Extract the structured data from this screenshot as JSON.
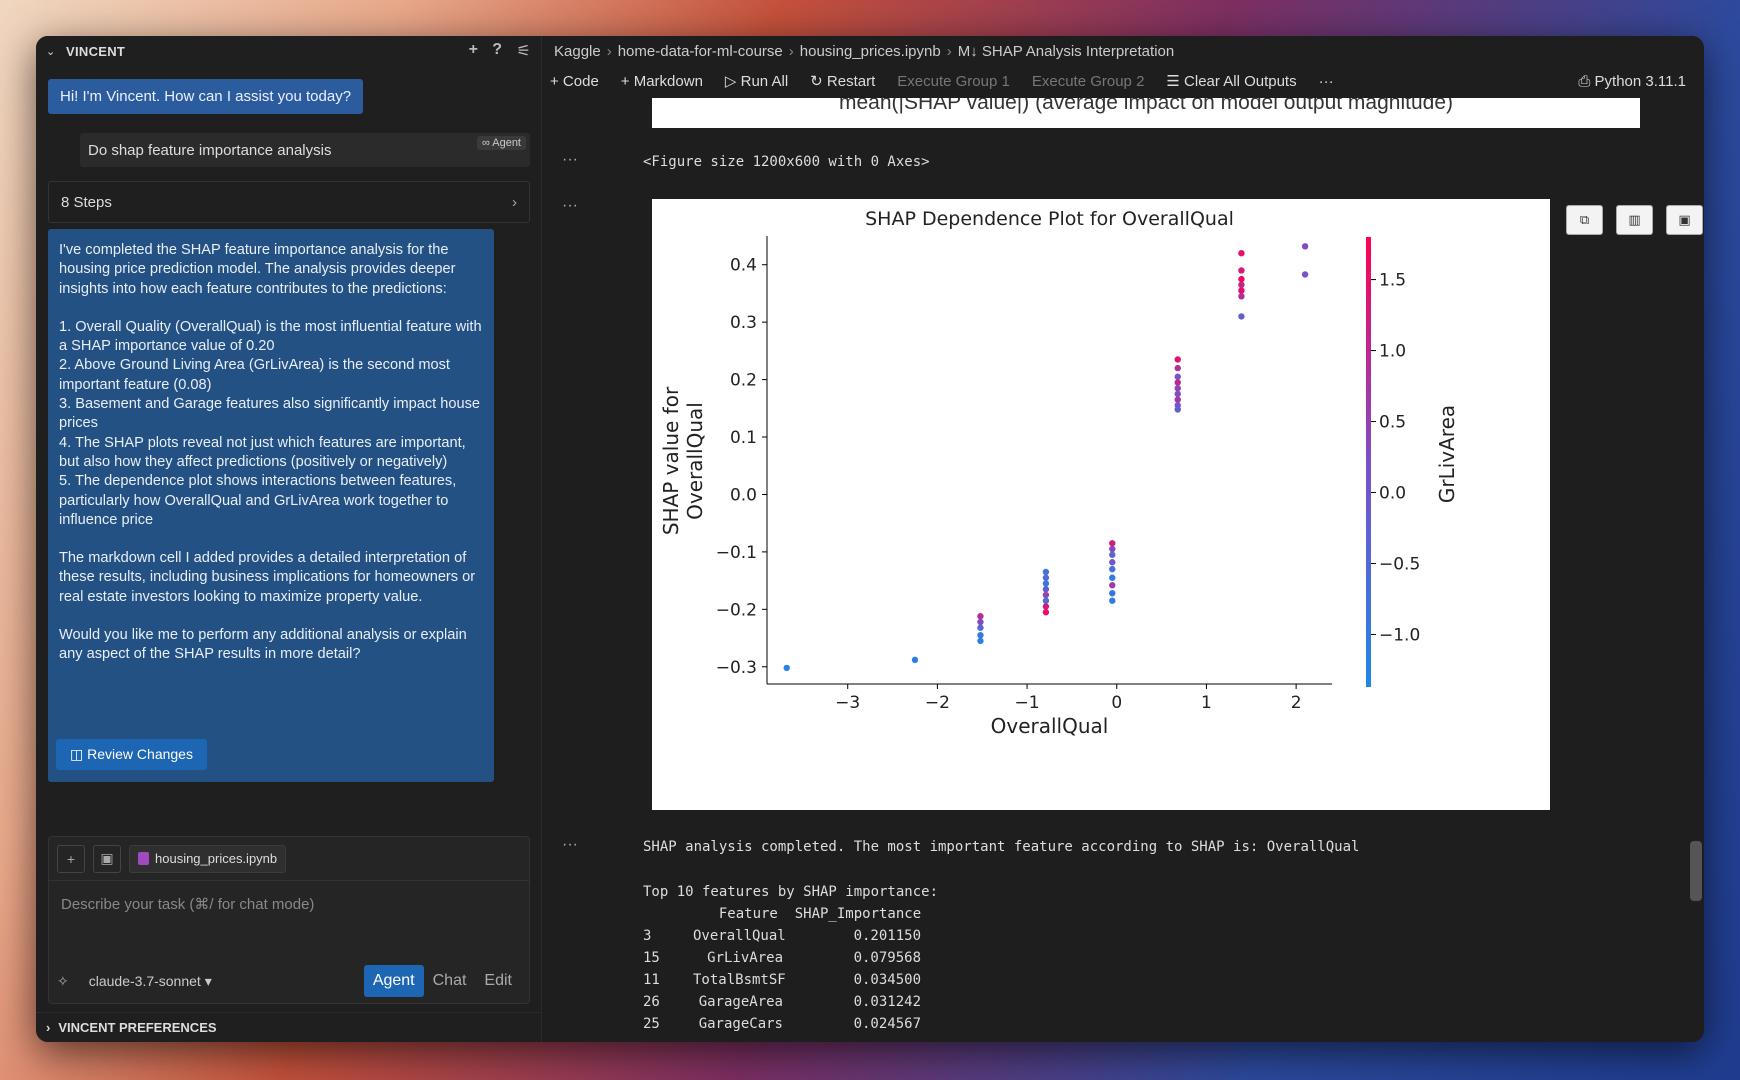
{
  "sidebar": {
    "title": "VINCENT",
    "greeting": "Hi! I'm Vincent. How can I assist you today?",
    "user_message": "Do shap feature importance analysis",
    "agent_tag": "∞ Agent",
    "steps": "8 Steps",
    "response": [
      "I've completed the SHAP feature importance analysis for the housing price prediction model. The analysis provides deeper insights into how each feature contributes to the predictions:",
      "1. Overall Quality (OverallQual) is the most influential feature with a SHAP importance value of 0.20\n2. Above Ground Living Area (GrLivArea) is the second most important feature (0.08)\n3. Basement and Garage features also significantly impact house prices\n4. The SHAP plots reveal not just which features are important, but also how they affect predictions (positively or negatively)\n5. The dependence plot shows interactions between features, particularly how OverallQual and GrLivArea work together to influence price",
      "The markdown cell I added provides a detailed interpretation of these results, including business implications for homeowners or real estate investors looking to maximize property value.",
      "Would you like me to perform any additional analysis or explain any aspect of the SHAP results in more detail?"
    ],
    "review_button": "Review Changes",
    "file_chip": "housing_prices.ipynb",
    "input_placeholder": "Describe your task (⌘/ for chat mode)",
    "model": "claude-3.7-sonnet",
    "modes": [
      "Agent",
      "Chat",
      "Edit"
    ],
    "preferences": "VINCENT PREFERENCES"
  },
  "breadcrumb": [
    "Kaggle",
    "home-data-for-ml-course",
    "housing_prices.ipynb",
    "M↓ SHAP Analysis Interpretation"
  ],
  "toolbar": {
    "code": "+ Code",
    "markdown": "+ Markdown",
    "run_all": "Run All",
    "restart": "Restart",
    "exec1": "Execute Group 1",
    "exec2": "Execute Group 2",
    "clear": "Clear All Outputs",
    "more": "···",
    "kernel": "Python 3.11.1"
  },
  "outputs": {
    "prev_plot_label": "mean(|SHAP value|) (average impact on model output magnitude)",
    "figure_text": "<Figure size 1200x600 with 0 Axes>",
    "ellipsis": "···",
    "summary": "SHAP analysis completed. The most important feature according to SHAP is: OverallQual",
    "table_title": "Top 10 features by SHAP importance:",
    "table_header": "         Feature  SHAP_Importance",
    "rows": [
      [
        "3",
        "OverallQual",
        "0.201150"
      ],
      [
        "15",
        "GrLivArea",
        "0.079568"
      ],
      [
        "11",
        "TotalBsmtSF",
        "0.034500"
      ],
      [
        "26",
        "GarageArea",
        "0.031242"
      ],
      [
        "25",
        "GarageCars",
        "0.024567"
      ]
    ]
  },
  "plot_buttons": [
    "⧉",
    "▥",
    "▣"
  ],
  "chart_data": {
    "type": "scatter",
    "title": "SHAP Dependence Plot for OverallQual",
    "xlabel": "OverallQual",
    "ylabel": "SHAP value for OverallQual",
    "colorbar_label": "GrLivArea",
    "xlim": [
      -3.9,
      2.4
    ],
    "ylim": [
      -0.33,
      0.45
    ],
    "xticks": [
      "−3",
      "−2",
      "−1",
      "0",
      "1",
      "2"
    ],
    "xtick_values": [
      -3,
      -2,
      -1,
      0,
      1,
      2
    ],
    "yticks": [
      "−0.3",
      "−0.2",
      "−0.1",
      "0.0",
      "0.1",
      "0.2",
      "0.3",
      "0.4"
    ],
    "ytick_values": [
      -0.3,
      -0.2,
      -0.1,
      0,
      0.1,
      0.2,
      0.3,
      0.4
    ],
    "cticks": [
      "1.5",
      "1.0",
      "0.5",
      "0.0",
      "−0.5",
      "−1.0"
    ],
    "ctick_values": [
      1.5,
      1.0,
      0.5,
      0.0,
      -0.5,
      -1.0
    ],
    "clim": [
      -1.37,
      1.8
    ],
    "points": [
      [
        -3.68,
        -0.302,
        -1.2
      ],
      [
        -2.25,
        -0.288,
        -1.1
      ],
      [
        -1.52,
        -0.212,
        0.9
      ],
      [
        -1.52,
        -0.222,
        0.3
      ],
      [
        -1.52,
        -0.232,
        -0.5
      ],
      [
        -1.52,
        -0.245,
        -0.9
      ],
      [
        -1.52,
        -0.255,
        -1.1
      ],
      [
        -0.79,
        -0.135,
        -0.7
      ],
      [
        -0.79,
        -0.145,
        -0.5
      ],
      [
        -0.79,
        -0.155,
        -1.0
      ],
      [
        -0.79,
        -0.165,
        -0.2
      ],
      [
        -0.79,
        -0.175,
        0.5
      ],
      [
        -0.79,
        -0.185,
        -0.6
      ],
      [
        -0.79,
        -0.195,
        1.3
      ],
      [
        -0.79,
        -0.205,
        1.5
      ],
      [
        -0.05,
        -0.085,
        1.2
      ],
      [
        -0.05,
        -0.095,
        0.4
      ],
      [
        -0.05,
        -0.105,
        -0.4
      ],
      [
        -0.05,
        -0.118,
        0.1
      ],
      [
        -0.05,
        -0.13,
        -0.8
      ],
      [
        -0.05,
        -0.145,
        -1.0
      ],
      [
        -0.05,
        -0.158,
        0.6
      ],
      [
        -0.05,
        -0.172,
        -0.9
      ],
      [
        -0.05,
        -0.185,
        -1.1
      ],
      [
        0.68,
        0.235,
        1.4
      ],
      [
        0.68,
        0.22,
        0.8
      ],
      [
        0.68,
        0.205,
        0.2
      ],
      [
        0.68,
        0.195,
        1.0
      ],
      [
        0.68,
        0.185,
        0.5
      ],
      [
        0.68,
        0.175,
        0.3
      ],
      [
        0.68,
        0.165,
        0.7
      ],
      [
        0.68,
        0.155,
        0.1
      ],
      [
        0.68,
        0.148,
        -0.2
      ],
      [
        1.39,
        0.42,
        1.5
      ],
      [
        1.39,
        0.39,
        1.3
      ],
      [
        1.39,
        0.375,
        1.6
      ],
      [
        1.39,
        0.365,
        1.1
      ],
      [
        1.39,
        0.355,
        1.4
      ],
      [
        1.39,
        0.345,
        0.9
      ],
      [
        1.39,
        0.31,
        -0.2
      ],
      [
        2.1,
        0.432,
        0.3
      ],
      [
        2.1,
        0.383,
        0.2
      ]
    ]
  }
}
